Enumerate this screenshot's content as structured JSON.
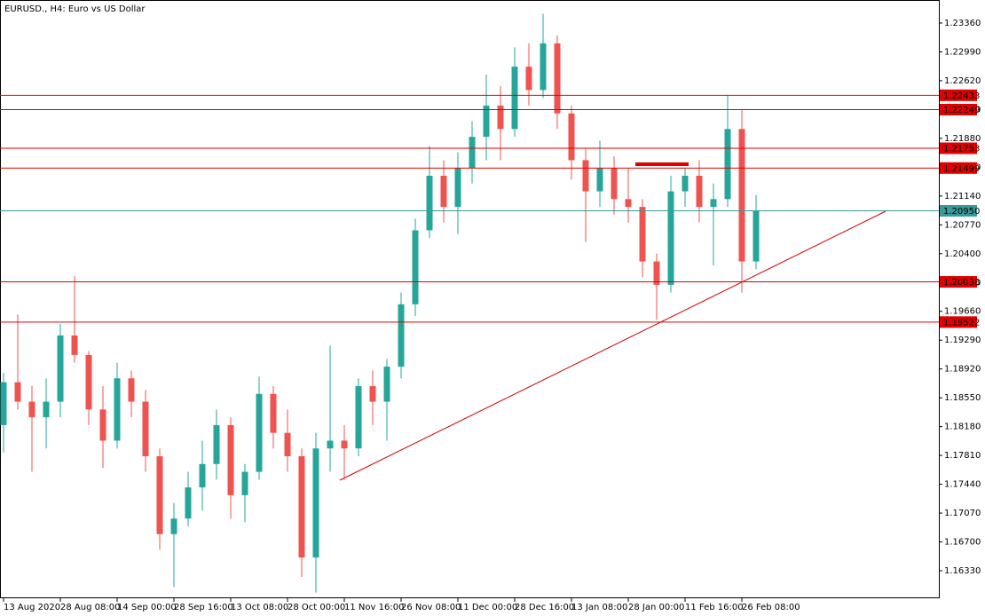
{
  "chart_data": {
    "type": "candlestick",
    "title": "EURUSD., H4:  Euro vs US Dollar",
    "categories": [
      "13 Aug 2020",
      null,
      null,
      null,
      "28 Aug 08:00",
      null,
      null,
      null,
      "14 Sep 00:00",
      null,
      null,
      null,
      "28 Sep 16:00",
      null,
      null,
      null,
      "13 Oct 08:00",
      null,
      null,
      null,
      "28 Oct 00:00",
      null,
      null,
      null,
      "11 Nov 16:00",
      null,
      null,
      null,
      "26 Nov 08:00",
      null,
      null,
      null,
      "11 Dec 00:00",
      null,
      null,
      null,
      "28 Dec 16:00",
      null,
      null,
      null,
      "13 Jan 08:00",
      null,
      null,
      null,
      "28 Jan 00:00",
      null,
      null,
      null,
      "11 Feb 16:00",
      null,
      null,
      null,
      "26 Feb 08:00",
      null
    ],
    "open": [
      1.182,
      1.1875,
      1.185,
      1.183,
      1.185,
      1.1935,
      1.191,
      1.184,
      1.18,
      1.188,
      1.185,
      1.178,
      1.168,
      1.17,
      1.174,
      1.177,
      1.182,
      1.173,
      1.176,
      1.186,
      1.181,
      1.178,
      1.165,
      1.179,
      1.18,
      1.179,
      1.187,
      1.185,
      1.1895,
      1.1975,
      1.207,
      1.214,
      1.21,
      1.215,
      1.219,
      1.223,
      1.22,
      1.228,
      1.225,
      1.231,
      1.222,
      1.216,
      1.212,
      1.215,
      1.211,
      1.21,
      1.203,
      1.2,
      1.212,
      1.214,
      1.21,
      1.211,
      1.22,
      1.203
    ],
    "high": [
      1.1887,
      1.1962,
      1.187,
      1.188,
      1.195,
      1.2011,
      1.1915,
      1.187,
      1.19,
      1.189,
      1.1865,
      1.179,
      1.172,
      1.176,
      1.18,
      1.184,
      1.183,
      1.177,
      1.1882,
      1.187,
      1.184,
      1.179,
      1.181,
      1.1922,
      1.182,
      1.188,
      1.189,
      1.1905,
      1.199,
      1.2085,
      1.2178,
      1.216,
      1.217,
      1.221,
      1.227,
      1.2255,
      1.2305,
      1.231,
      1.2348,
      1.232,
      1.223,
      1.2175,
      1.2185,
      1.2165,
      1.215,
      1.211,
      1.204,
      1.214,
      1.215,
      1.216,
      1.213,
      1.2243,
      1.2225,
      1.2115
    ],
    "low": [
      1.1785,
      1.184,
      1.176,
      1.179,
      1.183,
      1.19,
      1.182,
      1.1765,
      1.179,
      1.183,
      1.176,
      1.166,
      1.1612,
      1.169,
      1.171,
      1.175,
      1.17,
      1.1695,
      1.175,
      1.179,
      1.176,
      1.1625,
      1.1605,
      1.176,
      1.175,
      1.178,
      1.182,
      1.18,
      1.188,
      1.196,
      1.206,
      1.208,
      1.2065,
      1.213,
      1.216,
      1.216,
      1.219,
      1.223,
      1.224,
      1.22,
      1.2135,
      1.2055,
      1.21,
      1.209,
      1.208,
      1.201,
      1.1955,
      1.199,
      1.21,
      1.208,
      1.2025,
      1.21,
      1.199,
      1.202
    ],
    "close": [
      1.1875,
      1.185,
      1.183,
      1.185,
      1.1935,
      1.191,
      1.184,
      1.18,
      1.188,
      1.185,
      1.178,
      1.168,
      1.17,
      1.174,
      1.177,
      1.182,
      1.173,
      1.176,
      1.186,
      1.181,
      1.178,
      1.165,
      1.179,
      1.18,
      1.179,
      1.187,
      1.185,
      1.1895,
      1.1975,
      1.207,
      1.214,
      1.21,
      1.215,
      1.219,
      1.223,
      1.22,
      1.228,
      1.225,
      1.231,
      1.222,
      1.216,
      1.212,
      1.215,
      1.211,
      1.21,
      1.203,
      1.2,
      1.212,
      1.214,
      1.21,
      1.211,
      1.22,
      1.203,
      1.2095
    ],
    "up_color": "#26a69a",
    "down_color": "#ef5350",
    "ylim": [
      1.15977,
      1.23656
    ],
    "yticks": [
      {
        "value": 1.2336,
        "label": "1.23360"
      },
      {
        "value": 1.2299,
        "label": "1.22990"
      },
      {
        "value": 1.2262,
        "label": "1.22620"
      },
      {
        "value": 1.2225,
        "label": "1.22250"
      },
      {
        "value": 1.2188,
        "label": "1.21880"
      },
      {
        "value": 1.2151,
        "label": "1.21510"
      },
      {
        "value": 1.2114,
        "label": "1.21140"
      },
      {
        "value": 1.2077,
        "label": "1.20770"
      },
      {
        "value": 1.204,
        "label": "1.20400"
      },
      {
        "value": 1.2003,
        "label": "1.20030"
      },
      {
        "value": 1.1966,
        "label": "1.19660"
      },
      {
        "value": 1.1929,
        "label": "1.19290"
      },
      {
        "value": 1.1892,
        "label": "1.18920"
      },
      {
        "value": 1.1855,
        "label": "1.18550"
      },
      {
        "value": 1.1818,
        "label": "1.18180"
      },
      {
        "value": 1.1781,
        "label": "1.17810"
      },
      {
        "value": 1.1744,
        "label": "1.17440"
      },
      {
        "value": 1.1707,
        "label": "1.17070"
      },
      {
        "value": 1.167,
        "label": "1.16700"
      },
      {
        "value": 1.1633,
        "label": "1.16330"
      }
    ],
    "price_lines": [
      {
        "price": 1.22433,
        "color": "#e00000"
      },
      {
        "price": 1.22249,
        "color": "#e00000"
      },
      {
        "price": 1.21753,
        "color": "#e00000"
      },
      {
        "price": 1.21499,
        "color": "#e00000"
      },
      {
        "price": 1.2095,
        "label": "1.20950",
        "color": "#3a9a9a"
      },
      {
        "price": 1.20038,
        "color": "#e00000"
      },
      {
        "price": 1.19522,
        "color": "#e00000"
      }
    ],
    "grid": false
  }
}
